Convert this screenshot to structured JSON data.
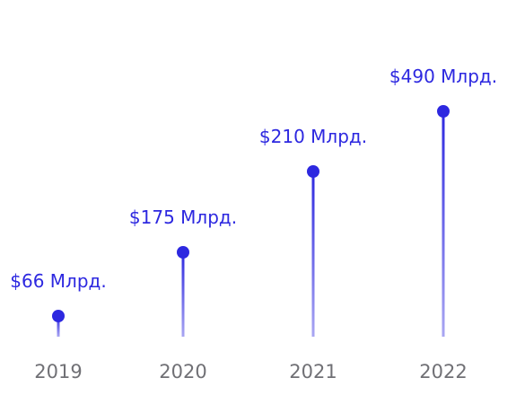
{
  "chart_data": {
    "type": "lollipop",
    "categories": [
      "2019",
      "2020",
      "2021",
      "2022"
    ],
    "values": [
      66,
      175,
      210,
      490
    ],
    "value_labels": [
      "$66 Млрд.",
      "$175 Млрд.",
      "$210 Млрд.",
      "$490 Млрд."
    ],
    "unit": "Млрд. $",
    "colors": {
      "stem_top": "#2d28e0",
      "stem_bottom": "#a9a6f2",
      "marker": "#2d28e0",
      "value_label": "#2d28e0",
      "year_label": "#707075"
    },
    "grid": false,
    "legend": "none"
  }
}
